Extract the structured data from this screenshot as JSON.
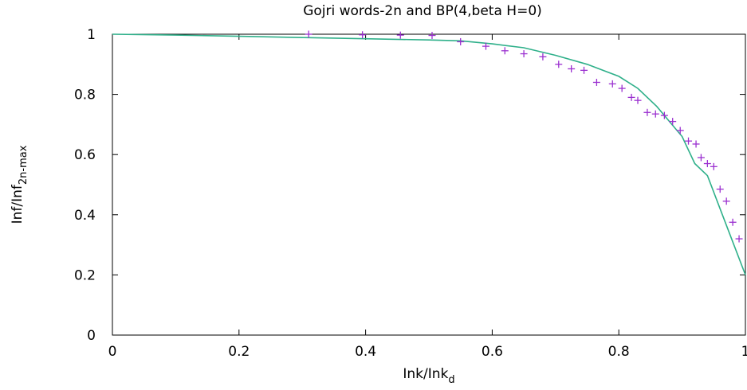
{
  "chart_data": {
    "type": "scatter",
    "title": "Gojri words-2n and BP(4,beta H=0)",
    "xlabel": {
      "main": "Ink/Ink",
      "sub": "d"
    },
    "ylabel": {
      "main": "Inf/Inf",
      "sub": "2n-max"
    },
    "xlim": [
      0,
      1
    ],
    "ylim": [
      0,
      1
    ],
    "xticks": [
      "0",
      "0.2",
      "0.4",
      "0.6",
      "0.8",
      "1"
    ],
    "xtick_values": [
      0,
      0.2,
      0.4,
      0.6,
      0.8,
      1
    ],
    "yticks": [
      "0",
      "0.2",
      "0.4",
      "0.6",
      "0.8",
      "1"
    ],
    "ytick_values": [
      0,
      0.2,
      0.4,
      0.6,
      0.8,
      1
    ],
    "grid": false,
    "legend": "none",
    "series": [
      {
        "kind": "line",
        "color": "#2fb08a",
        "x": [
          0,
          0.1,
          0.2,
          0.3,
          0.4,
          0.5,
          0.55,
          0.6,
          0.65,
          0.7,
          0.75,
          0.8,
          0.83,
          0.86,
          0.88,
          0.9,
          0.92,
          0.94,
          0.96,
          0.98,
          1.0
        ],
        "y": [
          1.0,
          0.997,
          0.993,
          0.989,
          0.985,
          0.981,
          0.978,
          0.968,
          0.955,
          0.93,
          0.9,
          0.86,
          0.82,
          0.76,
          0.71,
          0.66,
          0.57,
          0.53,
          0.42,
          0.31,
          0.2
        ]
      },
      {
        "kind": "points",
        "marker": "+",
        "color": "#9b30d0",
        "x": [
          0.31,
          0.395,
          0.455,
          0.505,
          0.55,
          0.59,
          0.62,
          0.65,
          0.68,
          0.705,
          0.725,
          0.745,
          0.765,
          0.79,
          0.805,
          0.82,
          0.83,
          0.845,
          0.858,
          0.872,
          0.885,
          0.897,
          0.91,
          0.922,
          0.93,
          0.94,
          0.95,
          0.96,
          0.97,
          0.98,
          0.99
        ],
        "y": [
          1.0,
          0.998,
          0.997,
          0.996,
          0.975,
          0.96,
          0.945,
          0.935,
          0.925,
          0.9,
          0.885,
          0.88,
          0.84,
          0.835,
          0.82,
          0.79,
          0.78,
          0.74,
          0.735,
          0.73,
          0.71,
          0.68,
          0.645,
          0.635,
          0.59,
          0.57,
          0.56,
          0.485,
          0.445,
          0.375,
          0.32
        ]
      }
    ]
  }
}
